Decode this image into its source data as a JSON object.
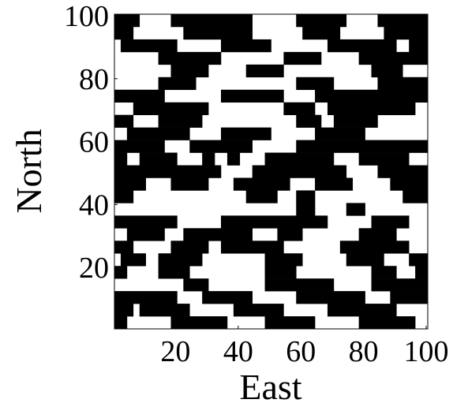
{
  "chart_data": {
    "type": "binary-map",
    "x_label": "East",
    "y_label": "North",
    "xlim": [
      0.5,
      100.5
    ],
    "ylim": [
      0.5,
      100.5
    ],
    "xticks": [
      20,
      40,
      60,
      80,
      100
    ],
    "yticks": [
      20,
      40,
      60,
      80,
      100
    ],
    "color": "#000000",
    "background": "#ffffff",
    "rows": [
      {
        "y": [
          97,
          100
        ],
        "x": [
          [
            1,
            8
          ],
          [
            19,
            44
          ],
          [
            59,
            74
          ],
          [
            85,
            100
          ]
        ]
      },
      {
        "y": [
          93,
          96
        ],
        "x": [
          [
            1,
            6
          ],
          [
            23,
            44
          ],
          [
            61,
            72
          ],
          [
            87,
            100
          ]
        ]
      },
      {
        "y": [
          89,
          92
        ],
        "x": [
          [
            3,
            20
          ],
          [
            35,
            50
          ],
          [
            69,
            90
          ],
          [
            95,
            100
          ]
        ]
      },
      {
        "y": [
          85,
          88
        ],
        "x": [
          [
            15,
            34
          ],
          [
            55,
            66
          ],
          [
            79,
            100
          ]
        ]
      },
      {
        "y": [
          81,
          84
        ],
        "x": [
          [
            19,
            30
          ],
          [
            43,
            54
          ],
          [
            83,
            92
          ]
        ]
      },
      {
        "y": [
          77,
          80
        ],
        "x": [
          [
            15,
            26
          ],
          [
            59,
            70
          ],
          [
            85,
            100
          ]
        ]
      },
      {
        "y": [
          73,
          76
        ],
        "x": [
          [
            1,
            16
          ],
          [
            35,
            54
          ],
          [
            65,
            100
          ]
        ]
      },
      {
        "y": [
          69,
          72
        ],
        "x": [
          [
            7,
            30
          ],
          [
            55,
            64
          ],
          [
            69,
            96
          ]
        ]
      },
      {
        "y": [
          65,
          68
        ],
        "x": [
          [
            1,
            6
          ],
          [
            15,
            28
          ],
          [
            59,
            66
          ],
          [
            71,
            84
          ]
        ]
      },
      {
        "y": [
          61,
          64
        ],
        "x": [
          [
            5,
            24
          ],
          [
            35,
            50
          ],
          [
            65,
            80
          ]
        ]
      },
      {
        "y": [
          57,
          60
        ],
        "x": [
          [
            1,
            16
          ],
          [
            25,
            44
          ],
          [
            59,
            100
          ]
        ]
      },
      {
        "y": [
          53,
          56
        ],
        "x": [
          [
            1,
            4
          ],
          [
            9,
            20
          ],
          [
            29,
            32
          ],
          [
            37,
            40
          ],
          [
            49,
            70
          ],
          [
            79,
            94
          ]
        ]
      },
      {
        "y": [
          49,
          52
        ],
        "x": [
          [
            1,
            34
          ],
          [
            45,
            74
          ],
          [
            85,
            100
          ]
        ]
      },
      {
        "y": [
          45,
          48
        ],
        "x": [
          [
            1,
            10
          ],
          [
            19,
            30
          ],
          [
            39,
            56
          ],
          [
            65,
            76
          ],
          [
            89,
            100
          ]
        ]
      },
      {
        "y": [
          41,
          44
        ],
        "x": [
          [
            1,
            6
          ],
          [
            43,
            52
          ],
          [
            59,
            64
          ],
          [
            93,
            100
          ]
        ]
      },
      {
        "y": [
          37,
          40
        ],
        "x": [
          [
            59,
            64
          ],
          [
            75,
            80
          ]
        ]
      },
      {
        "y": [
          33,
          36
        ],
        "x": [
          [
            1,
            20
          ],
          [
            35,
            68
          ],
          [
            83,
            94
          ]
        ]
      },
      {
        "y": [
          29,
          32
        ],
        "x": [
          [
            5,
            16
          ],
          [
            23,
            44
          ],
          [
            53,
            60
          ],
          [
            79,
            90
          ]
        ]
      },
      {
        "y": [
          25,
          28
        ],
        "x": [
          [
            1,
            6
          ],
          [
            19,
            30
          ],
          [
            35,
            54
          ],
          [
            73,
            94
          ]
        ]
      },
      {
        "y": [
          21,
          24
        ],
        "x": [
          [
            3,
            10
          ],
          [
            15,
            28
          ],
          [
            49,
            60
          ],
          [
            75,
            86
          ],
          [
            95,
            100
          ]
        ]
      },
      {
        "y": [
          17,
          20
        ],
        "x": [
          [
            1,
            4
          ],
          [
            15,
            24
          ],
          [
            49,
            58
          ],
          [
            83,
            90
          ],
          [
            97,
            100
          ]
        ]
      },
      {
        "y": [
          13,
          16
        ],
        "x": [
          [
            23,
            30
          ],
          [
            49,
            70
          ],
          [
            83,
            100
          ]
        ]
      },
      {
        "y": [
          9,
          12
        ],
        "x": [
          [
            1,
            20
          ],
          [
            29,
            44
          ],
          [
            59,
            80
          ],
          [
            89,
            100
          ]
        ]
      },
      {
        "y": [
          5,
          8
        ],
        "x": [
          [
            1,
            6
          ],
          [
            9,
            24
          ],
          [
            39,
            54
          ],
          [
            69,
            90
          ]
        ]
      },
      {
        "y": [
          1,
          4
        ],
        "x": [
          [
            1,
            4
          ],
          [
            19,
            36
          ],
          [
            49,
            64
          ],
          [
            79,
            96
          ]
        ]
      }
    ]
  }
}
